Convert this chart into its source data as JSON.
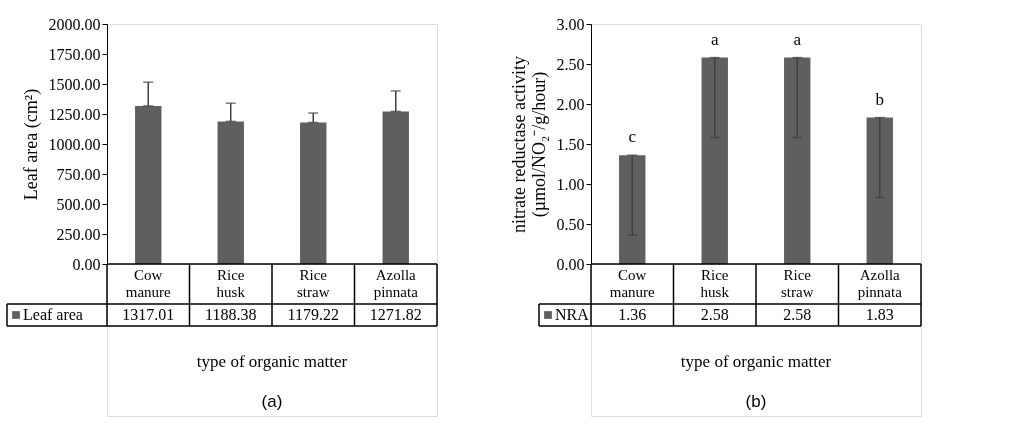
{
  "chart_data": [
    {
      "type": "bar",
      "xlabel": "type of organic matter",
      "ylabel": "Leaf area (cm²)",
      "categories": [
        "Cow manure",
        "Rice husk",
        "Rice straw",
        "Azolla pinnata"
      ],
      "series": [
        {
          "name": "Leaf area",
          "color": "#5f5f5f",
          "values": [
            1317.01,
            1188.38,
            1179.22,
            1271.82
          ],
          "errors": [
            [
              1317.01,
              1515
            ],
            [
              1188.38,
              1340
            ],
            [
              1179.22,
              1258
            ],
            [
              1271.82,
              1442
            ]
          ]
        }
      ],
      "ylim": [
        0,
        2000
      ],
      "yticks": [
        {
          "value": 0,
          "label": "0.00"
        },
        {
          "value": 250,
          "label": "250.00"
        },
        {
          "value": 500,
          "label": "500.00"
        },
        {
          "value": 750,
          "label": "750.00"
        },
        {
          "value": 1000,
          "label": "1000.00"
        },
        {
          "value": 1250,
          "label": "1250.00"
        },
        {
          "value": 1500,
          "label": "1500.00"
        },
        {
          "value": 1750,
          "label": "1750.00"
        },
        {
          "value": 2000,
          "label": "2000.00"
        }
      ],
      "data_labels": true,
      "legend": "bottom",
      "grid": false,
      "annotations": [
        "(a)"
      ]
    },
    {
      "type": "bar",
      "xlabel": "type of organic matter",
      "ylabel": "nitrate reductase activity (µmol/NO₂⁻/g/hour)",
      "categories": [
        "Cow manure",
        "Rice husk",
        "Rice straw",
        "Azolla pinnata"
      ],
      "series": [
        {
          "name": "NRA",
          "color": "#5f5f5f",
          "values": [
            1.36,
            2.58,
            2.58,
            1.83
          ],
          "errors": [
            [
              0.36,
              1.36
            ],
            [
              1.58,
              2.58
            ],
            [
              1.58,
              2.58
            ],
            [
              0.83,
              1.83
            ]
          ]
        }
      ],
      "ylim": [
        0,
        3
      ],
      "yticks": [
        {
          "value": 0,
          "label": "0.00"
        },
        {
          "value": 0.5,
          "label": "0.50"
        },
        {
          "value": 1,
          "label": "1.00"
        },
        {
          "value": 1.5,
          "label": "1.50"
        },
        {
          "value": 2,
          "label": "2.00"
        },
        {
          "value": 2.5,
          "label": "2.50"
        },
        {
          "value": 3,
          "label": "3.00"
        }
      ],
      "data_labels": true,
      "legend": "bottom",
      "grid": false,
      "annotations": [
        {
          "text": "c",
          "x": "Cow manure",
          "y": 1.36
        },
        {
          "text": "a",
          "x": "Rice husk",
          "y": 2.58
        },
        {
          "text": "a",
          "x": "Rice straw",
          "y": 2.58
        },
        {
          "text": "b",
          "x": "Azolla pinnata",
          "y": 1.83
        },
        "(b)"
      ]
    }
  ]
}
